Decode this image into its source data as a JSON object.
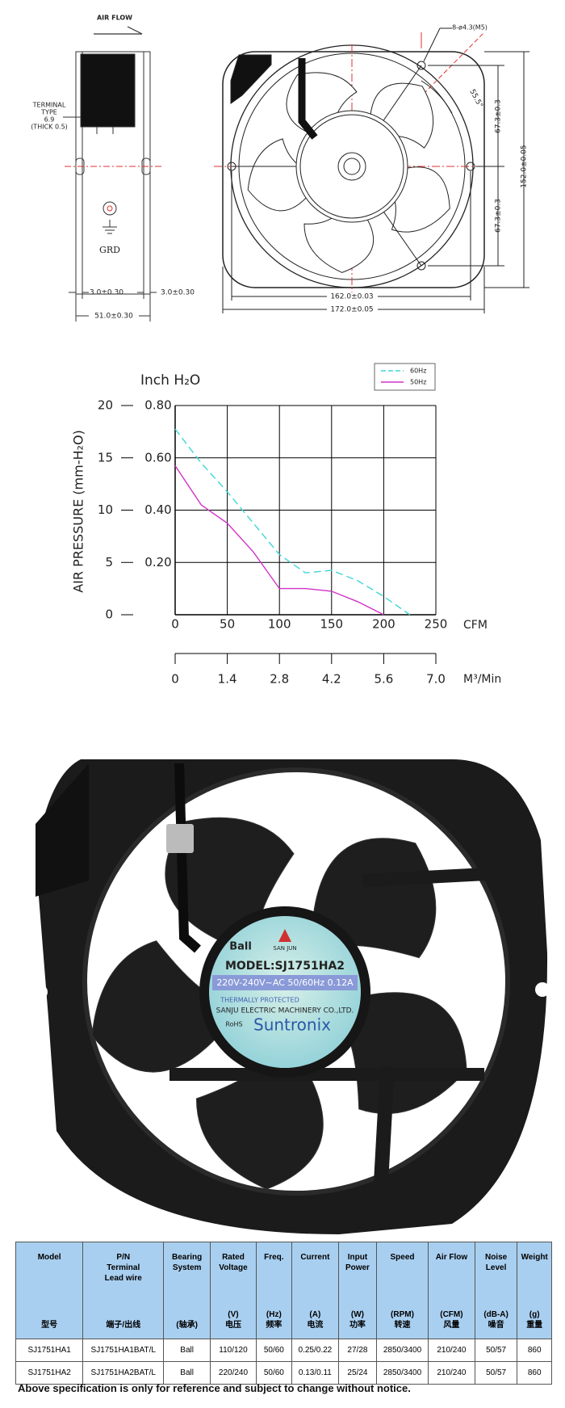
{
  "drawing": {
    "air_flow": "AIR FLOW",
    "terminal": [
      "TERMINAL",
      "TYPE",
      "6.9",
      "(THICK 0.5)"
    ],
    "grd": "GRD",
    "dim_left_flange": "3.0±0.30",
    "dim_right_flange": "3.0±0.30",
    "dim_depth": "51.0±0.30",
    "holes": "8-ø4.3(M5)",
    "angle": "55.5°",
    "dim_upper": "67.3±0.3",
    "dim_lower": "67.3±0.3",
    "dim_height": "152.0±0.05",
    "dim_hole_span": "162.0±0.03",
    "dim_width": "172.0±0.05"
  },
  "chart_data": {
    "type": "line",
    "ylabel": "Inch H₂O",
    "y2label": "AIR PRESSURE   (mm-H₂O)",
    "xlabel": "CFM",
    "x2label": "M³/Min",
    "x": [
      0,
      25,
      50,
      75,
      100,
      125,
      150,
      175,
      200,
      225
    ],
    "series": [
      {
        "name": "60Hz",
        "color": "#3fd6d6",
        "style": "dashed",
        "values": [
          0.71,
          0.58,
          0.47,
          0.35,
          0.23,
          0.16,
          0.17,
          0.13,
          0.07,
          0
        ]
      },
      {
        "name": "50Hz",
        "color": "#d232c8",
        "style": "solid",
        "values": [
          0.57,
          0.42,
          0.35,
          0.24,
          0.1,
          0.1,
          0.09,
          0.05,
          0,
          null
        ]
      }
    ],
    "xlim": [
      0,
      250
    ],
    "xticks": [
      0,
      50,
      100,
      150,
      200,
      250
    ],
    "ylim": [
      0,
      0.8
    ],
    "yticks": [
      {
        "value": 0.2,
        "label": "0.20"
      },
      {
        "value": 0.4,
        "label": "0.40"
      },
      {
        "value": 0.6,
        "label": "0.60"
      },
      {
        "value": 0.8,
        "label": "0.80"
      }
    ],
    "y2lim": [
      0,
      20
    ],
    "y2ticks": [
      0,
      5,
      10,
      15,
      20
    ],
    "x2lim": [
      0,
      7
    ],
    "x2ticks": [
      0,
      1.4,
      2.8,
      4.2,
      5.6,
      {
        "value": 7,
        "label": "7.0"
      }
    ],
    "grid": true,
    "legend": "top-right"
  },
  "photo": {
    "label": {
      "brand_mark": "SAN JUN",
      "bearing": "Ball",
      "model": "MODEL:SJ1751HA2",
      "rating": "220V-240V~AC  50/60Hz  0.12A",
      "protection": "THERMALLY PROTECTED",
      "maker": "SANJU ELECTRIC MACHINERY CO.,LTD.",
      "rohs": "RoHS",
      "brand": "Suntronix"
    }
  },
  "table": {
    "header": [
      {
        "en": [
          "Model"
        ],
        "zh": [
          "型号"
        ]
      },
      {
        "en": [
          "P/N",
          "Terminal",
          "Lead wire"
        ],
        "zh": [
          "端子/出线"
        ]
      },
      {
        "en": [
          "Bearing",
          "System"
        ],
        "zh": [
          "(轴承)"
        ]
      },
      {
        "en": [
          "Rated",
          "Voltage"
        ],
        "zh": [
          "(V)",
          "电压"
        ]
      },
      {
        "en": [
          "Freq."
        ],
        "zh": [
          "(Hz)",
          "频率"
        ]
      },
      {
        "en": [
          "Current"
        ],
        "zh": [
          "(A)",
          "电流"
        ]
      },
      {
        "en": [
          "Input",
          "Power"
        ],
        "zh": [
          "(W)",
          "功率"
        ]
      },
      {
        "en": [
          "Speed"
        ],
        "zh": [
          "(RPM)",
          "转速"
        ]
      },
      {
        "en": [
          "Air Flow"
        ],
        "zh": [
          "(CFM)",
          "风量"
        ]
      },
      {
        "en": [
          "Noise",
          "Level"
        ],
        "zh": [
          "(dB-A)",
          "噪音"
        ]
      },
      {
        "en": [
          "Weight"
        ],
        "zh": [
          "(g)",
          "重量"
        ]
      }
    ],
    "rows": [
      [
        "SJ1751HA1",
        "SJ1751HA1BAT/L",
        "Ball",
        "110/120",
        "50/60",
        "0.25/0.22",
        "27/28",
        "2850/3400",
        "210/240",
        "50/57",
        "860"
      ],
      [
        "SJ1751HA2",
        "SJ1751HA2BAT/L",
        "Ball",
        "220/240",
        "50/60",
        "0.13/0.11",
        "25/24",
        "2850/3400",
        "210/240",
        "50/57",
        "860"
      ]
    ]
  },
  "footnote": "Above specification is only for reference and subject to change without notice."
}
